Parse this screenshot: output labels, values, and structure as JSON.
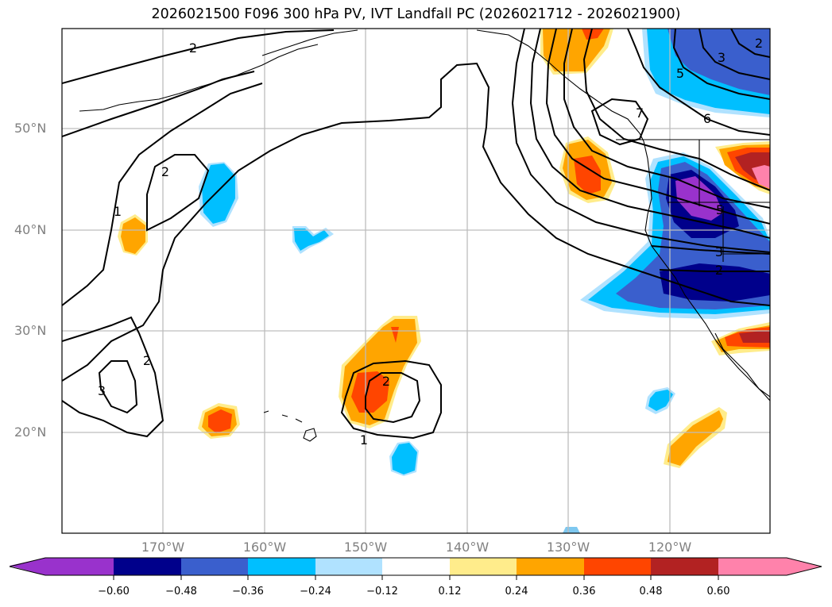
{
  "title": "2026021500 F096 300 hPa PV, IVT Landfall PC (2026021712 - 2026021900)",
  "map": {
    "lat_labels": [
      "50°N",
      "40°N",
      "30°N",
      "20°N"
    ],
    "lon_labels": [
      "170°W",
      "160°W",
      "150°W",
      "140°W",
      "130°W",
      "120°W"
    ],
    "contour_labels": [
      "2",
      "2",
      "1",
      "2",
      "3",
      "2",
      "1",
      "7",
      "6",
      "5",
      "3",
      "2",
      "5",
      "3",
      "2"
    ]
  },
  "colorbar": {
    "ticks": [
      "−0.60",
      "−0.48",
      "−0.36",
      "−0.24",
      "−0.12",
      "0.12",
      "0.24",
      "0.36",
      "0.48",
      "0.60"
    ],
    "colors": [
      "#9932cc",
      "#00008b",
      "#3a5fcd",
      "#00bfff",
      "#b0e2ff",
      "#ffffff",
      "#ffec8b",
      "#ffa500",
      "#ff4500",
      "#b22222",
      "#ff82ab"
    ]
  }
}
